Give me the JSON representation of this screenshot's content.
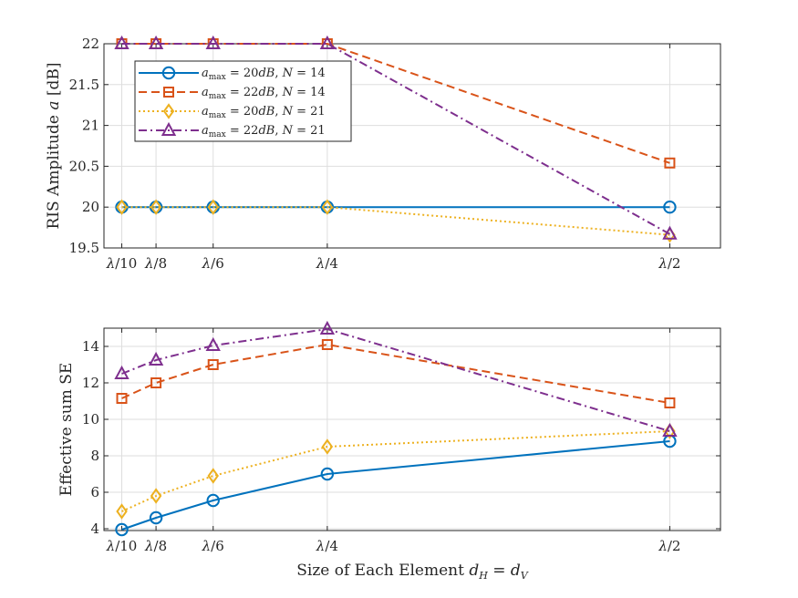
{
  "chart_data": [
    {
      "type": "line",
      "ylabel": "RIS Amplitude a [dB]",
      "xlabel": "",
      "categories": [
        "λ/10",
        "λ/8",
        "λ/6",
        "λ/4",
        "λ/2"
      ],
      "x": [
        0.1,
        0.125,
        0.1667,
        0.25,
        0.5
      ],
      "ylim": [
        19.5,
        22
      ],
      "yticks": [
        19.5,
        20,
        20.5,
        21,
        21.5,
        22
      ],
      "grid": true,
      "legend_position": "top-left",
      "series": [
        {
          "name": "a_max = 20dB, N = 14",
          "color": "#0072BD",
          "style": "solid",
          "marker": "circle",
          "values": [
            20,
            20,
            20,
            20,
            20
          ]
        },
        {
          "name": "a_max = 22dB, N = 14",
          "color": "#D95319",
          "style": "dashed",
          "marker": "square",
          "values": [
            22,
            22,
            22,
            22,
            20.54
          ]
        },
        {
          "name": "a_max = 20dB, N = 21",
          "color": "#EDB120",
          "style": "dotted",
          "marker": "diamond",
          "values": [
            20,
            20,
            20,
            20,
            19.66
          ]
        },
        {
          "name": "a_max = 22dB, N = 21",
          "color": "#7E2F8E",
          "style": "dashdot",
          "marker": "triangle",
          "values": [
            22,
            22,
            22,
            22,
            19.67
          ]
        }
      ]
    },
    {
      "type": "line",
      "ylabel": "Effective sum SE",
      "xlabel": "Size of Each Element d_H = d_V",
      "categories": [
        "λ/10",
        "λ/8",
        "λ/6",
        "λ/4",
        "λ/2"
      ],
      "x": [
        0.1,
        0.125,
        0.1667,
        0.25,
        0.5
      ],
      "ylim": [
        3.9,
        15
      ],
      "yticks": [
        4,
        6,
        8,
        10,
        12,
        14
      ],
      "grid": true,
      "series": [
        {
          "name": "a_max = 20dB, N = 14",
          "color": "#0072BD",
          "style": "solid",
          "marker": "circle",
          "values": [
            3.95,
            4.6,
            5.55,
            7.0,
            8.8
          ]
        },
        {
          "name": "a_max = 22dB, N = 14",
          "color": "#D95319",
          "style": "dashed",
          "marker": "square",
          "values": [
            11.15,
            12.0,
            13.0,
            14.1,
            10.9
          ]
        },
        {
          "name": "a_max = 20dB, N = 21",
          "color": "#EDB120",
          "style": "dotted",
          "marker": "diamond",
          "values": [
            4.95,
            5.8,
            6.9,
            8.5,
            9.35
          ]
        },
        {
          "name": "a_max = 22dB, N = 21",
          "color": "#7E2F8E",
          "style": "dashdot",
          "marker": "triangle",
          "values": [
            12.5,
            13.25,
            14.05,
            14.95,
            9.35
          ]
        }
      ]
    }
  ]
}
